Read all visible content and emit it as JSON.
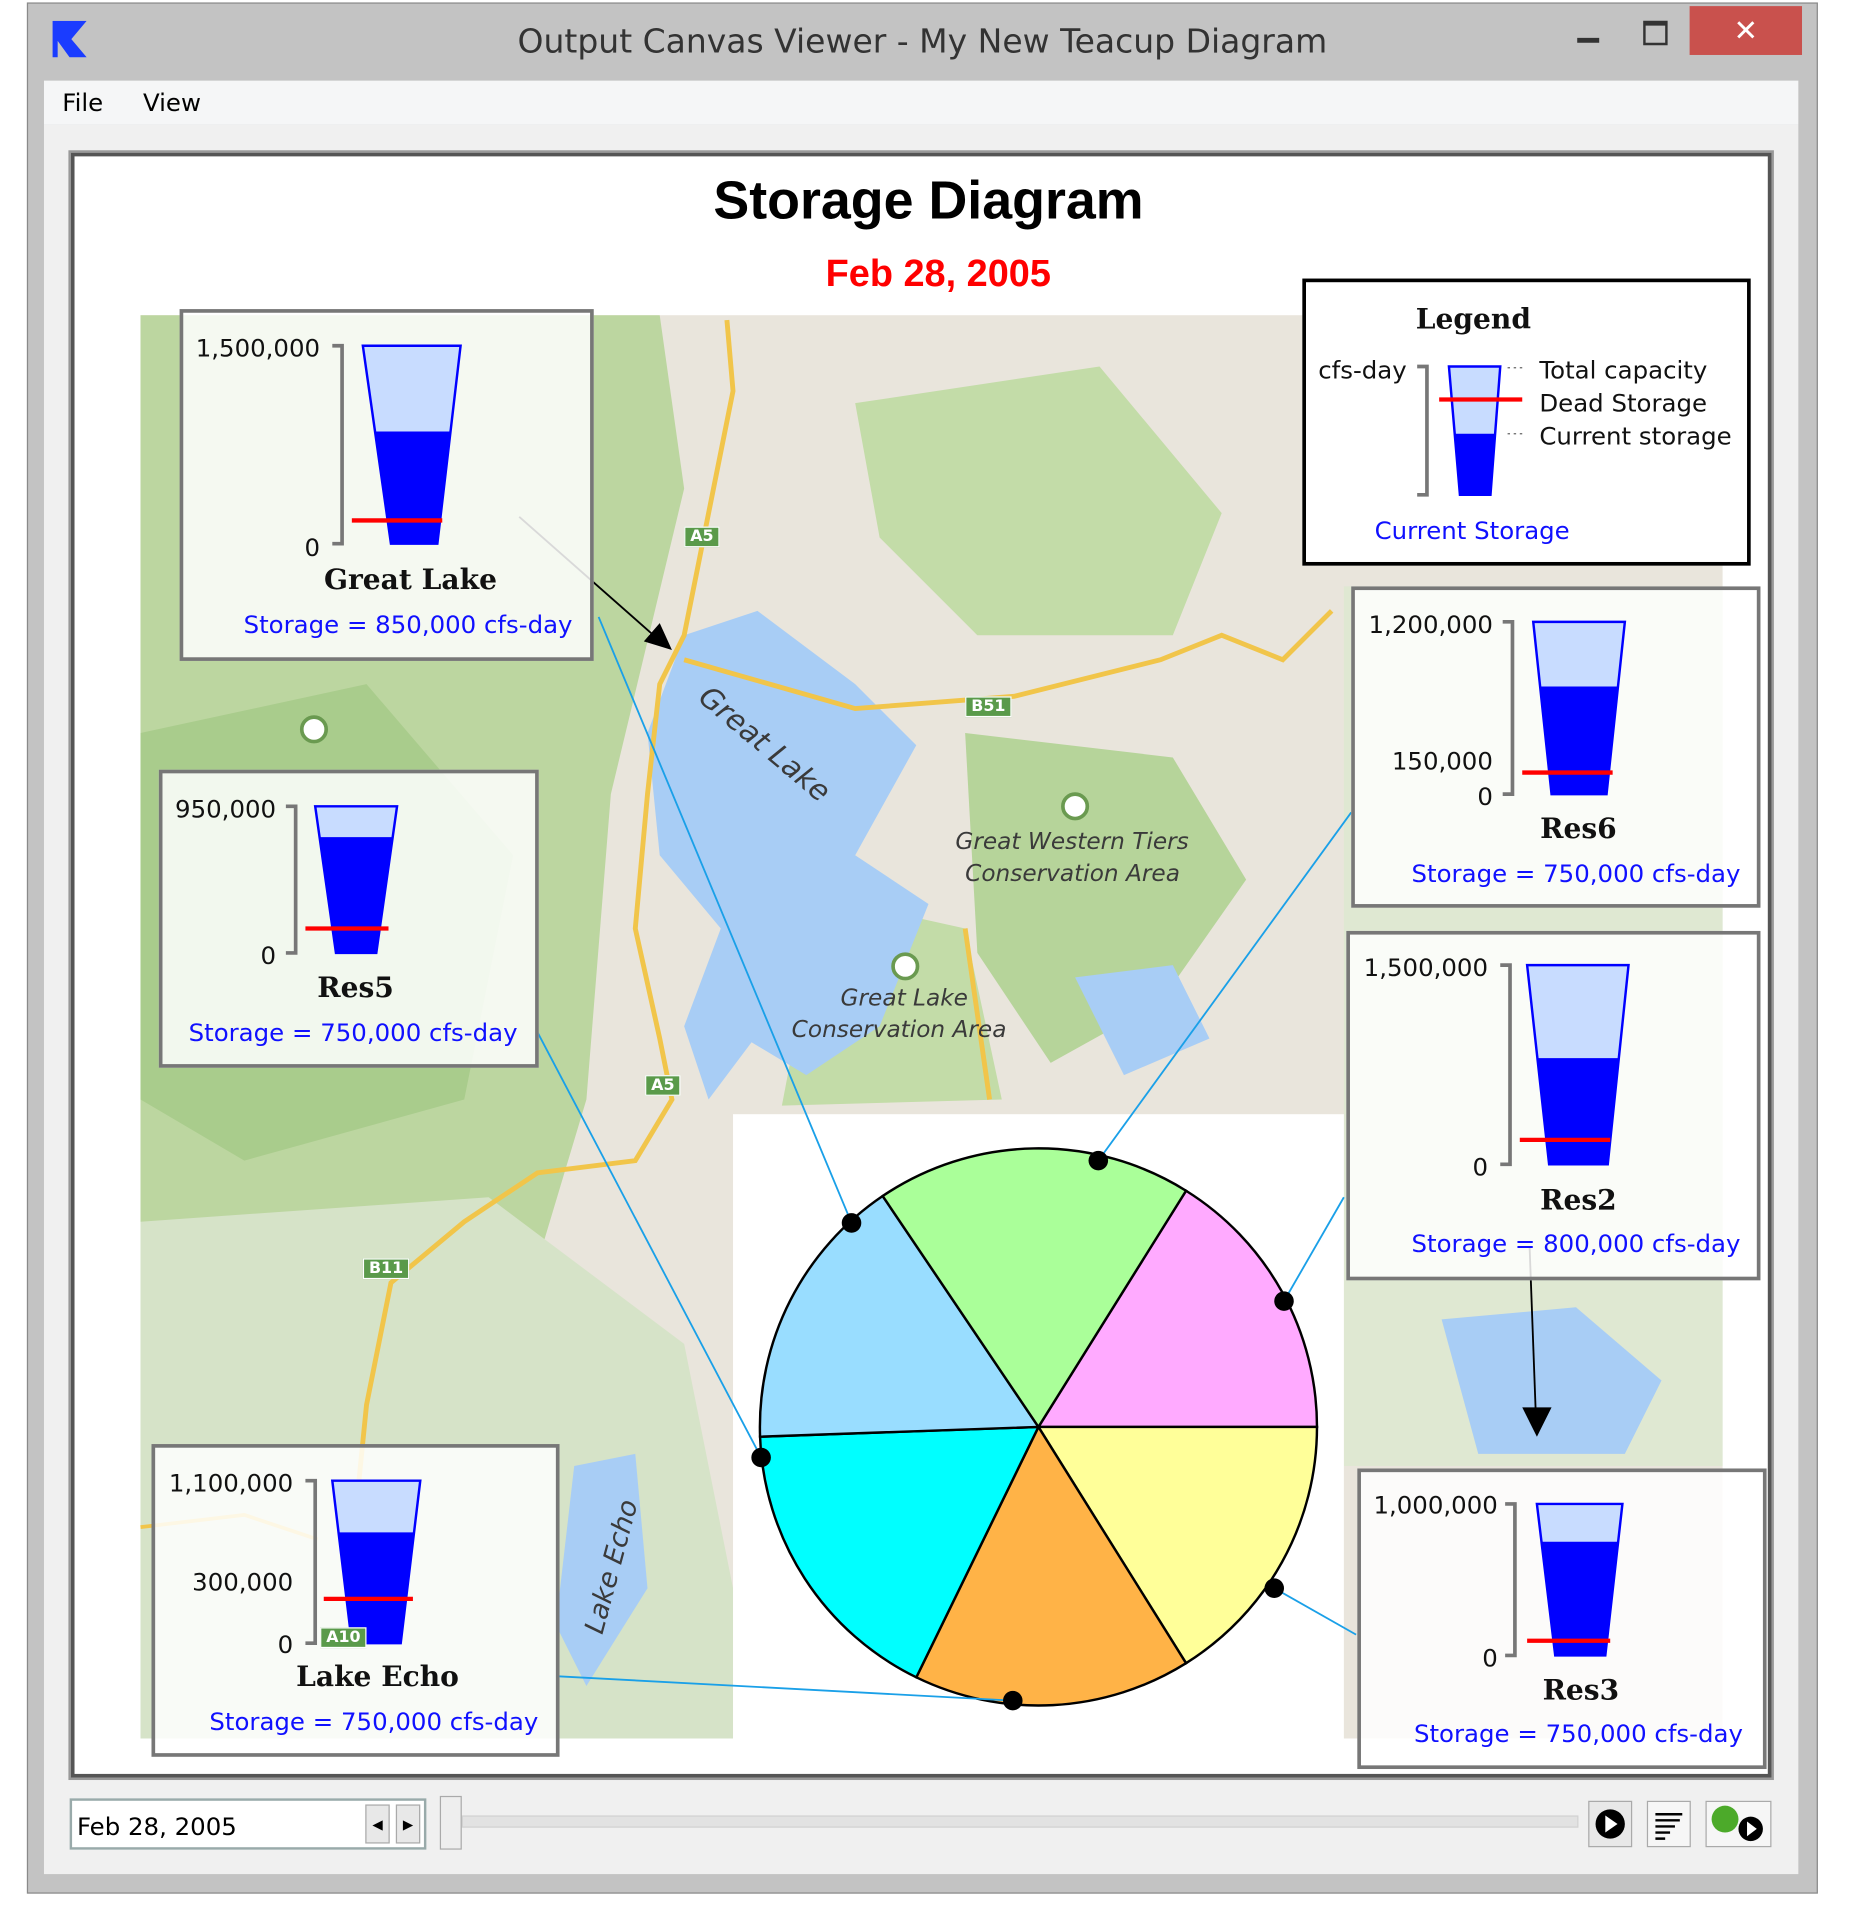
{
  "window": {
    "title": "Output Canvas Viewer - My New Teacup Diagram",
    "minimize_icon": "minimize-icon",
    "maximize_icon": "maximize-icon",
    "close_icon": "close-icon",
    "close_color": "#c9514d"
  },
  "menu": [
    "File",
    "View"
  ],
  "diagram": {
    "title": "Storage Diagram",
    "date": "Feb 28, 2005",
    "date_color": "#ff0000"
  },
  "legend": {
    "title": "Legend",
    "unit": "cfs-day",
    "items": [
      "Total capacity",
      "Dead Storage",
      "Current storage"
    ],
    "caption": "Current Storage"
  },
  "colors": {
    "capacity": "#c8dcff",
    "storage": "#0000ff",
    "dead": "#ff0000",
    "connector": "#1aa0e8"
  },
  "reservoirs": [
    {
      "name": "Great Lake",
      "capacity": 1500000,
      "storage": 850000,
      "axis_top": "1,500,000",
      "axis_bottom": "0",
      "storage_label": "Storage = 850,000 cfs-day"
    },
    {
      "name": "Res5",
      "capacity": 950000,
      "storage": 750000,
      "axis_top": "950,000",
      "axis_bottom": "0",
      "storage_label": "Storage = 750,000 cfs-day"
    },
    {
      "name": "Res6",
      "capacity": 1200000,
      "storage": 750000,
      "dead": 150000,
      "axis_top": "1,200,000",
      "axis_dead": "150,000",
      "axis_bottom": "0",
      "storage_label": "Storage = 750,000 cfs-day"
    },
    {
      "name": "Res2",
      "capacity": 1500000,
      "storage": 800000,
      "axis_top": "1,500,000",
      "axis_bottom": "0",
      "storage_label": "Storage = 800,000 cfs-day"
    },
    {
      "name": "Res3",
      "capacity": 1000000,
      "storage": 750000,
      "axis_top": "1,000,000",
      "axis_bottom": "0",
      "storage_label": "Storage = 750,000 cfs-day"
    },
    {
      "name": "Lake Echo",
      "capacity": 1100000,
      "storage": 750000,
      "dead": 300000,
      "axis_top": "1,100,000",
      "axis_dead": "300,000",
      "axis_bottom": "0",
      "storage_label": "Storage = 750,000 cfs-day"
    }
  ],
  "pie": {
    "colors": [
      "#ffaaff",
      "#ffff99",
      "#ffb347",
      "#00ffff",
      "#99ddff",
      "#aaff99"
    ]
  },
  "map": {
    "labels": [
      "Great Lake",
      "Great Western Tiers",
      "Conservation Area",
      "Great Lake",
      "Conservation Area",
      "Lake Echo"
    ],
    "roads": [
      "A5",
      "B51",
      "A5",
      "B11",
      "A10"
    ]
  },
  "footer": {
    "date": "Feb 28, 2005",
    "prev_icon": "step-back-icon",
    "next_icon": "step-forward-icon",
    "play_icon": "play-icon",
    "list_icon": "list-icon",
    "globe_play_icon": "globe-play-icon"
  }
}
